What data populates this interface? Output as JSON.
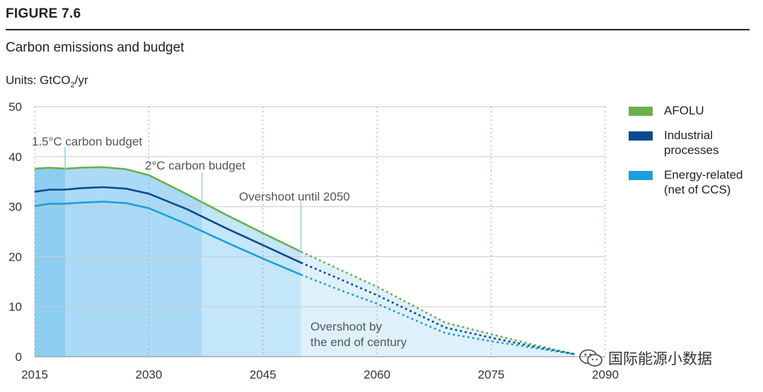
{
  "figure": {
    "label": "FIGURE 7.6",
    "title": "Carbon emissions and budget",
    "units_prefix": "Units: GtCO",
    "units_sub": "2",
    "units_suffix": "/yr"
  },
  "legend": [
    {
      "label": "AFOLU",
      "color": "#6ab04c"
    },
    {
      "label": "Industrial\nprocesses",
      "color": "#0b4a8f"
    },
    {
      "label": "Energy-related\n(net of CCS)",
      "color": "#1aa0dc"
    }
  ],
  "watermark": {
    "text": "国际能源小数据",
    "icon": "wechat-icon"
  },
  "chart_data": {
    "type": "area",
    "xlim": [
      2015,
      2090
    ],
    "ylim": [
      0,
      50
    ],
    "x_ticks": [
      2015,
      2030,
      2045,
      2060,
      2075,
      2090
    ],
    "y_ticks": [
      0,
      10,
      20,
      30,
      40,
      50
    ],
    "grid": true,
    "legend_position": "right",
    "x": [
      2015,
      2017,
      2019,
      2021,
      2024,
      2027,
      2030,
      2035,
      2040,
      2045,
      2050,
      2055,
      2060,
      2065,
      2069,
      2075,
      2080,
      2086
    ],
    "series": [
      {
        "name": "AFOLU",
        "color": "#6ab04c",
        "values": [
          37.6,
          37.8,
          37.6,
          37.8,
          37.9,
          37.5,
          36.3,
          32.5,
          28.5,
          24.7,
          21.0,
          17.5,
          14.0,
          10.0,
          6.8,
          4.5,
          2.6,
          0.5
        ]
      },
      {
        "name": "Industrial processes",
        "color": "#0b4a8f",
        "values": [
          33.0,
          33.4,
          33.4,
          33.7,
          33.9,
          33.6,
          32.6,
          29.5,
          25.8,
          22.3,
          18.8,
          15.6,
          12.3,
          8.7,
          5.8,
          3.8,
          2.2,
          0.5
        ]
      },
      {
        "name": "Energy-related (net of CCS)",
        "color": "#1aa0dc",
        "values": [
          30.1,
          30.6,
          30.6,
          30.8,
          31.0,
          30.7,
          29.7,
          26.5,
          23.0,
          19.6,
          16.4,
          13.4,
          10.6,
          7.3,
          4.7,
          3.1,
          1.9,
          0.5
        ]
      }
    ],
    "projection_start": 2050,
    "budget_regions": [
      {
        "label": "1.5°C carbon budget",
        "x_end": 2019
      },
      {
        "label": "2°C carbon budget",
        "x_end": 2037
      },
      {
        "label": "Overshoot until 2050",
        "x_end": 2050
      },
      {
        "label": "Overshoot by\nthe end of century",
        "x_end": 2086
      }
    ]
  }
}
